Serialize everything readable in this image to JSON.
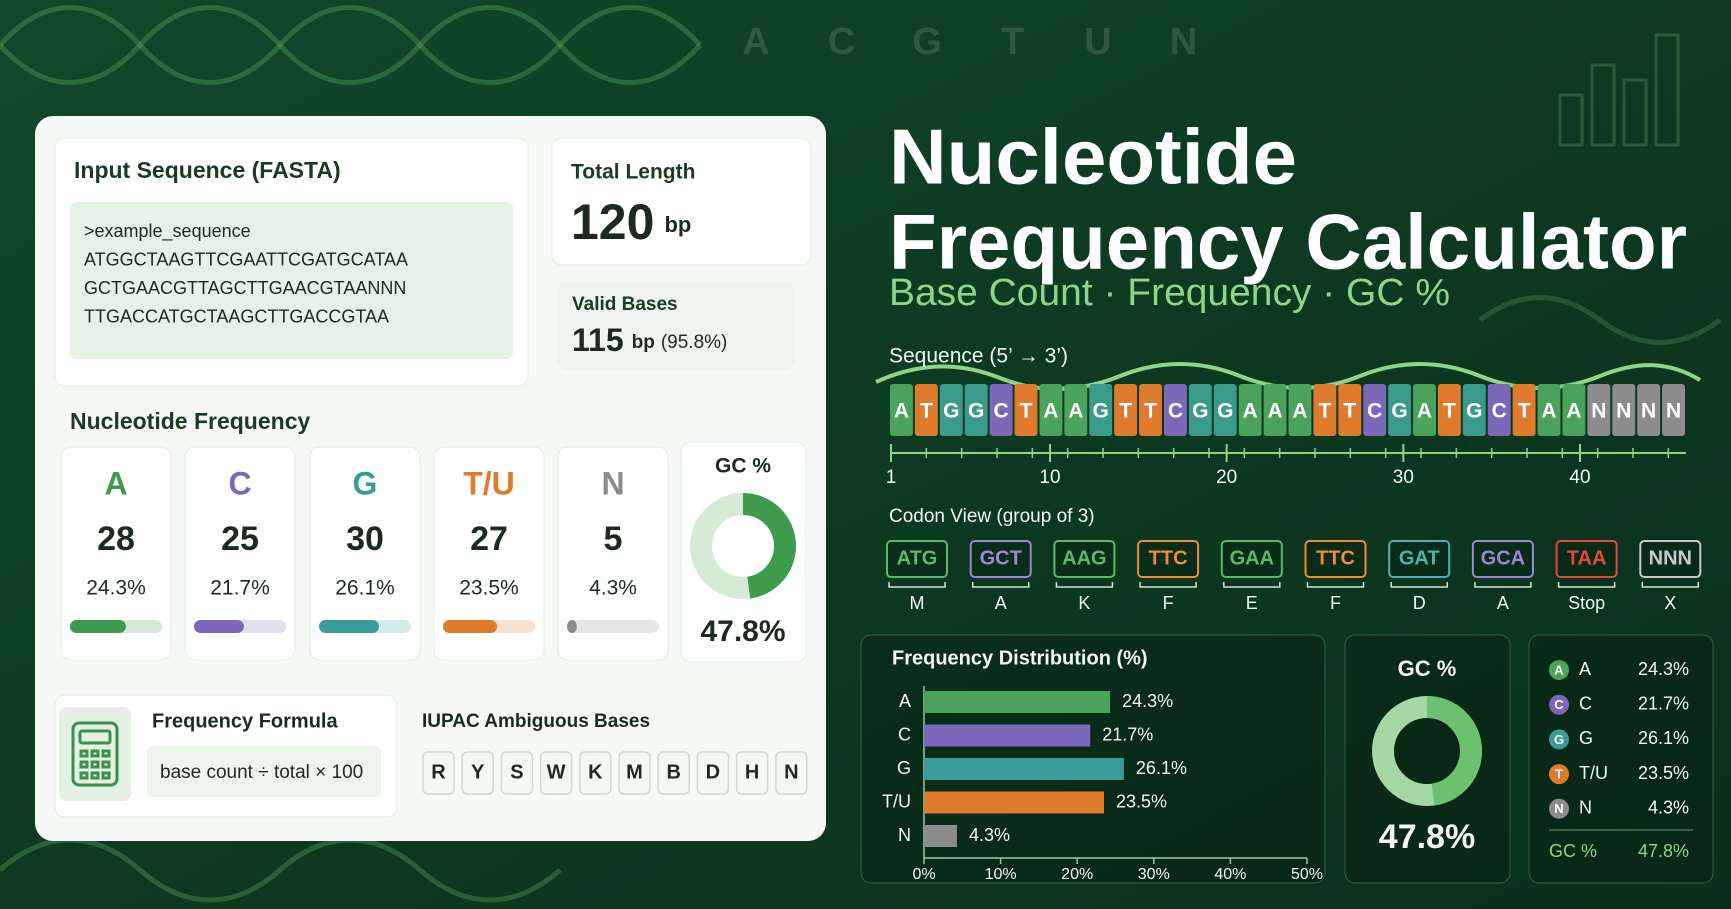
{
  "background_letters": [
    "A",
    "C",
    "G",
    "T",
    "U",
    "N"
  ],
  "input": {
    "label": "Input Sequence (FASTA)",
    "lines": [
      ">example_sequence",
      "ATGGCTAAGTTCGAATTCGATGCATAA",
      "GCTGAACGTTAGCTTGAACGTAANNN",
      "TTGACCATGCTAAGCTTGACCGTAA"
    ]
  },
  "total_length": {
    "label": "Total Length",
    "value": 120,
    "unit": "bp"
  },
  "valid_bases": {
    "label": "Valid Bases",
    "value": 115,
    "unit": "bp",
    "percent_label": "(95.8%)"
  },
  "frequency": {
    "label": "Nucleotide Frequency",
    "bases": [
      {
        "symbol": "A",
        "count": 28,
        "percent": 24.3,
        "percent_label": "24.3%",
        "color": "#3d9b4e"
      },
      {
        "symbol": "C",
        "count": 25,
        "percent": 21.7,
        "percent_label": "21.7%",
        "color": "#7c68b9"
      },
      {
        "symbol": "G",
        "count": 30,
        "percent": 26.1,
        "percent_label": "26.1%",
        "color": "#3a9b9b"
      },
      {
        "symbol": "T/U",
        "count": 27,
        "percent": 23.5,
        "percent_label": "23.5%",
        "color": "#e07b2d"
      },
      {
        "symbol": "N",
        "count": 5,
        "percent": 4.3,
        "percent_label": "4.3%",
        "color": "#8c8c8c"
      }
    ]
  },
  "gc_card": {
    "label": "GC %",
    "value": 47.8,
    "value_label": "47.8%"
  },
  "formula": {
    "label": "Frequency Formula",
    "text": "base count ÷ total × 100"
  },
  "iupac": {
    "label": "IUPAC Ambiguous Bases",
    "bases": [
      "R",
      "Y",
      "S",
      "W",
      "K",
      "M",
      "B",
      "D",
      "H",
      "N"
    ]
  },
  "title_lines": [
    "Nucleotide",
    "Frequency Calculator"
  ],
  "subtitle": "Base Count · Frequency · GC %",
  "sequence": {
    "label": "Sequence (5’ → 3’)",
    "bases": [
      "A",
      "T",
      "G",
      "G",
      "C",
      "T",
      "A",
      "A",
      "G",
      "T",
      "T",
      "C",
      "G",
      "G",
      "A",
      "A",
      "A",
      "T",
      "T",
      "C",
      "G",
      "A",
      "T",
      "G",
      "C",
      "T",
      "A",
      "A",
      "N",
      "N",
      "N",
      "N"
    ],
    "palette": {
      "A": "#4aa35a",
      "T": "#e07b2d",
      "G": "#3a9b8b",
      "C": "#7c68b9",
      "N": "#8c8c8c"
    },
    "ruler_range": [
      1,
      46
    ],
    "ruler_ticks": [
      1,
      10,
      20,
      30,
      40
    ]
  },
  "codon_view": {
    "label": "Codon View (group of 3)",
    "codons": [
      {
        "codon": "ATG",
        "amino_acid": "M",
        "color": "#5cb86a"
      },
      {
        "codon": "GCT",
        "amino_acid": "A",
        "color": "#9a88d6"
      },
      {
        "codon": "AAG",
        "amino_acid": "K",
        "color": "#5cb86a"
      },
      {
        "codon": "TTC",
        "amino_acid": "F",
        "color": "#ee8a3a"
      },
      {
        "codon": "GAA",
        "amino_acid": "E",
        "color": "#5cb86a"
      },
      {
        "codon": "TTC",
        "amino_acid": "F",
        "color": "#ee8a3a"
      },
      {
        "codon": "GAT",
        "amino_acid": "D",
        "color": "#4fb0ae"
      },
      {
        "codon": "GCA",
        "amino_acid": "A",
        "color": "#9a88d6"
      },
      {
        "codon": "TAA",
        "amino_acid": "Stop",
        "color": "#e5483e"
      },
      {
        "codon": "NNN",
        "amino_acid": "X",
        "color": "#c9c9c9"
      }
    ]
  },
  "chart_data": {
    "type": "bar",
    "orientation": "horizontal",
    "title": "Frequency Distribution (%)",
    "categories": [
      "A",
      "C",
      "G",
      "T/U",
      "N"
    ],
    "values": [
      24.3,
      21.7,
      26.1,
      23.5,
      4.3
    ],
    "value_labels": [
      "24.3%",
      "21.7%",
      "26.1%",
      "23.5%",
      "4.3%"
    ],
    "colors": [
      "#4aa35a",
      "#7c68b9",
      "#3a9b9b",
      "#e07b2d",
      "#8c8c8c"
    ],
    "xlim": [
      0,
      50
    ],
    "xticks": [
      {
        "value": 0,
        "label": "0%"
      },
      {
        "value": 10,
        "label": "10%"
      },
      {
        "value": 20,
        "label": "20%"
      },
      {
        "value": 30,
        "label": "30%"
      },
      {
        "value": 40,
        "label": "40%"
      },
      {
        "value": 50,
        "label": "50%"
      }
    ]
  },
  "gc_summary": {
    "label": "GC %",
    "value": 47.8,
    "value_label": "47.8%"
  },
  "legend": {
    "items": [
      {
        "badge": "A",
        "name": "A",
        "percent_label": "24.3%"
      },
      {
        "badge": "C",
        "name": "C",
        "percent_label": "21.7%"
      },
      {
        "badge": "G",
        "name": "G",
        "percent_label": "26.1%"
      },
      {
        "badge": "T",
        "name": "T/U",
        "percent_label": "23.5%"
      },
      {
        "badge": "N",
        "name": "N",
        "percent_label": "4.3%"
      }
    ],
    "gc_label": "GC %",
    "gc_value_label": "47.8%"
  }
}
